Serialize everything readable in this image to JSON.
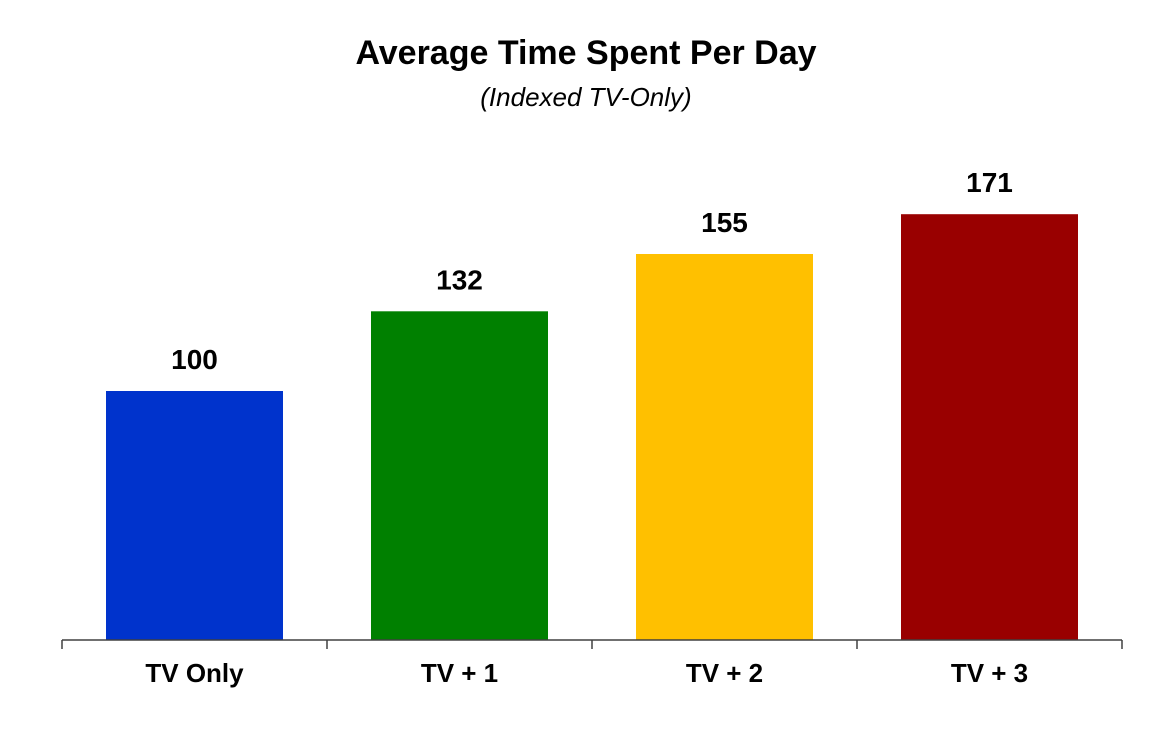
{
  "chart_data": {
    "type": "bar",
    "title": "Average Time Spent Per Day",
    "subtitle": "(Indexed TV-Only)",
    "xlabel": "",
    "ylabel": "",
    "categories": [
      "TV Only",
      "TV + 1",
      "TV + 2",
      "TV + 3"
    ],
    "values": [
      100,
      132,
      155,
      171
    ],
    "data_labels": [
      "100",
      "132",
      "155",
      "171"
    ],
    "colors": [
      "#0033CC",
      "#008000",
      "#FFC000",
      "#990000"
    ],
    "ylim": [
      0,
      200
    ],
    "grid": false,
    "legend": "none"
  }
}
